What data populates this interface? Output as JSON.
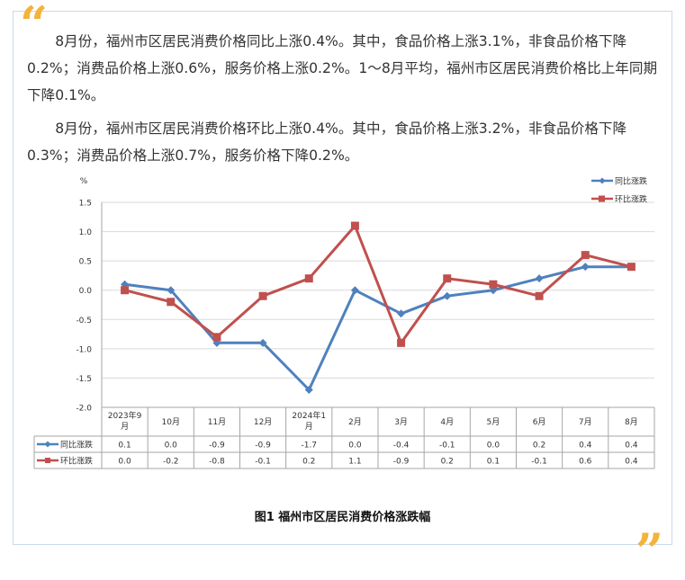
{
  "paragraphs": [
    "8月份，福州市区居民消费价格同比上涨0.4%。其中，食品价格上涨3.1%，非食品价格下降0.2%；消费品价格上涨0.6%，服务价格上涨0.2%。1～8月平均，福州市区居民消费价格比上年同期下降0.1%。",
    "8月份，福州市区居民消费价格环比上涨0.4%。其中，食品价格上涨3.2%，非食品价格下降0.3%；消费品价格上涨0.7%，服务价格下降0.2%。"
  ],
  "caption": "图1  福州市区居民消费价格涨跌幅",
  "colors": {
    "quote": "#f2b43a",
    "series1": "#4f81bd",
    "series2": "#c0504d"
  },
  "chart_data": {
    "type": "line",
    "title": "",
    "ylabel": "%",
    "ylim": [
      -2.0,
      1.5
    ],
    "yticks": [
      "1.5",
      "1.0",
      "0.5",
      "0.0",
      "-0.5",
      "-1.0",
      "-1.5",
      "-2.0"
    ],
    "ytick_values": [
      1.5,
      1.0,
      0.5,
      0.0,
      -0.5,
      -1.0,
      -1.5,
      -2.0
    ],
    "categories": [
      [
        "2023年9",
        "月"
      ],
      [
        "10月"
      ],
      [
        "11月"
      ],
      [
        "12月"
      ],
      [
        "2024年1",
        "月"
      ],
      [
        "2月"
      ],
      [
        "3月"
      ],
      [
        "4月"
      ],
      [
        "5月"
      ],
      [
        "6月"
      ],
      [
        "7月"
      ],
      [
        "8月"
      ]
    ],
    "legend_position": "top-right",
    "grid": true,
    "series": [
      {
        "name": "同比涨跌",
        "values": [
          0.1,
          0.0,
          -0.9,
          -0.9,
          -1.7,
          0.0,
          -0.4,
          -0.1,
          0.0,
          0.2,
          0.4,
          0.4
        ],
        "labels": [
          "0.1",
          "0.0",
          "-0.9",
          "-0.9",
          "-1.7",
          "0.0",
          "-0.4",
          "-0.1",
          "0.0",
          "0.2",
          "0.4",
          "0.4"
        ]
      },
      {
        "name": "环比涨跌",
        "values": [
          0.0,
          -0.2,
          -0.8,
          -0.1,
          0.2,
          1.1,
          -0.9,
          0.2,
          0.1,
          -0.1,
          0.6,
          0.4
        ],
        "labels": [
          "0.0",
          "-0.2",
          "-0.8",
          "-0.1",
          "0.2",
          "1.1",
          "-0.9",
          "0.2",
          "0.1",
          "-0.1",
          "0.6",
          "0.4"
        ]
      }
    ]
  }
}
